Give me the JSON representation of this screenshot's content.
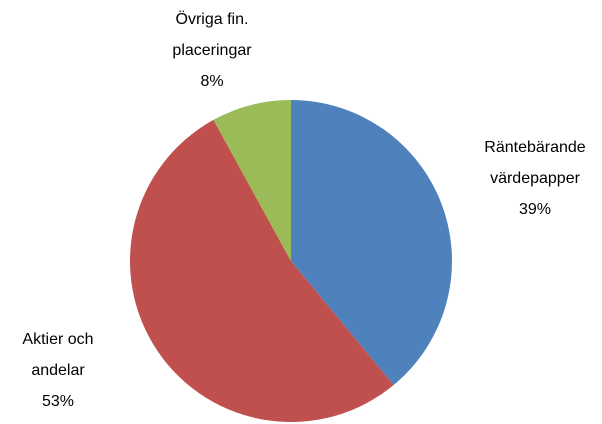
{
  "chart_data": {
    "type": "pie",
    "categories": [
      "Räntebärande värdepapper",
      "Aktier och andelar",
      "Övriga fin. placeringar"
    ],
    "values": [
      39,
      53,
      8
    ],
    "value_labels": [
      "39%",
      "53%",
      "8%"
    ],
    "colors": [
      "#4f81bd",
      "#c0504d",
      "#9bbb59"
    ]
  }
}
